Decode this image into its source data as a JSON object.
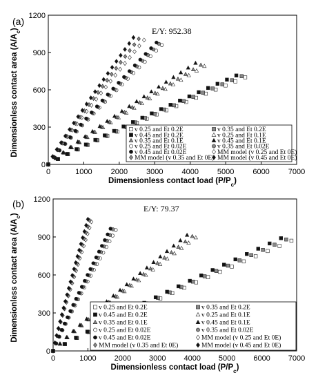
{
  "chart_data": [
    {
      "type": "scatter",
      "panel_label": "(a)",
      "annotation": "E/Y: 952.38",
      "xlabel": "Dimensionless contact load (P/P",
      "xlabel_sub": "c",
      "ylabel": "Dimensionless contact area (A/A",
      "ylabel_sub": "c",
      "xlim": [
        0,
        7000
      ],
      "ylim": [
        0,
        1200
      ],
      "xticks": [
        "0",
        "1000",
        "2000",
        "3000",
        "4000",
        "5000",
        "6000",
        "7000"
      ],
      "yticks": [
        "0",
        "300",
        "600",
        "900",
        "1200"
      ],
      "grid": false,
      "legend_position": "bottom-right",
      "series": [
        {
          "name": "v 0.25 and Et 0.2E",
          "marker": "square",
          "fill": "#ffffff",
          "end": [
            5550,
            700
          ]
        },
        {
          "name": "v 0.35 and Et 0.2E",
          "marker": "square",
          "fill": "#888888",
          "end": [
            5450,
            710
          ]
        },
        {
          "name": "v 0.45 and Et 0.2E",
          "marker": "square",
          "fill": "#111111",
          "end": [
            5300,
            715
          ]
        },
        {
          "name": "v 0.25 and Et 0.1E",
          "marker": "triangle",
          "fill": "#ffffff",
          "end": [
            4400,
            790
          ]
        },
        {
          "name": "v 0.35 and Et 0.1E",
          "marker": "triangle",
          "fill": "#888888",
          "end": [
            4300,
            800
          ]
        },
        {
          "name": "v 0.45 and Et 0.1E",
          "marker": "triangle",
          "fill": "#111111",
          "end": [
            4150,
            815
          ]
        },
        {
          "name": "v 0.25 and Et 0.02E",
          "marker": "circle",
          "fill": "#ffffff",
          "end": [
            3200,
            960
          ]
        },
        {
          "name": "v 0.35 and Et 0.02E",
          "marker": "circle",
          "fill": "#888888",
          "end": [
            3120,
            970
          ]
        },
        {
          "name": "v 0.45 and Et 0.02E",
          "marker": "circle",
          "fill": "#111111",
          "end": [
            3050,
            980
          ]
        },
        {
          "name": "MM model (v 0.25 and Et 0E)",
          "marker": "diamond",
          "fill": "#ffffff",
          "end": [
            2700,
            1000
          ]
        },
        {
          "name": "MM model (v 0.35 and Et 0E)",
          "marker": "diamond",
          "fill": "#888888",
          "end": [
            2550,
            1010
          ]
        },
        {
          "name": "MM model (v 0.45 and Et 0E)",
          "marker": "diamond",
          "fill": "#111111",
          "end": [
            2400,
            1020
          ]
        }
      ]
    },
    {
      "type": "scatter",
      "panel_label": "(b)",
      "annotation": "E/Y: 79.37",
      "xlabel": "Dimensionless contact load (P/P",
      "xlabel_sub": "c",
      "ylabel": "Dimensionless contact area (A/A",
      "ylabel_sub": "c",
      "xlim": [
        0,
        7000
      ],
      "ylim": [
        0,
        1200
      ],
      "xticks": [
        "0",
        "1000",
        "2000",
        "3000",
        "4000",
        "5000",
        "6000",
        "7000"
      ],
      "yticks": [
        "0",
        "300",
        "600",
        "900",
        "1200"
      ],
      "grid": false,
      "legend_position": "bottom-right",
      "series": [
        {
          "name": "v 0.25 and Et 0.2E",
          "marker": "square",
          "fill": "#ffffff",
          "end": [
            6850,
            870
          ]
        },
        {
          "name": "v 0.35 and Et 0.2E",
          "marker": "square",
          "fill": "#888888",
          "end": [
            6700,
            880
          ]
        },
        {
          "name": "v 0.45 and Et 0.2E",
          "marker": "square",
          "fill": "#111111",
          "end": [
            6550,
            890
          ]
        },
        {
          "name": "v 0.25 and Et 0.1E",
          "marker": "triangle",
          "fill": "#ffffff",
          "end": [
            4100,
            895
          ]
        },
        {
          "name": "v 0.35 and Et 0.1E",
          "marker": "triangle",
          "fill": "#888888",
          "end": [
            4000,
            905
          ]
        },
        {
          "name": "v 0.45 and Et 0.1E",
          "marker": "triangle",
          "fill": "#111111",
          "end": [
            3850,
            915
          ]
        },
        {
          "name": "v 0.25 and Et 0.02E",
          "marker": "circle",
          "fill": "#ffffff",
          "end": [
            1800,
            955
          ]
        },
        {
          "name": "v 0.35 and Et 0.02E",
          "marker": "circle",
          "fill": "#888888",
          "end": [
            1720,
            960
          ]
        },
        {
          "name": "v 0.45 and Et 0.02E",
          "marker": "circle",
          "fill": "#111111",
          "end": [
            1650,
            965
          ]
        },
        {
          "name": "MM model (v 0.25 and Et 0E)",
          "marker": "diamond",
          "fill": "#ffffff",
          "end": [
            1100,
            1020
          ]
        },
        {
          "name": "MM model (v 0.35 and Et 0E)",
          "marker": "diamond",
          "fill": "#888888",
          "end": [
            1050,
            1030
          ]
        },
        {
          "name": "MM model (v 0.45 and Et 0E)",
          "marker": "diamond",
          "fill": "#111111",
          "end": [
            1000,
            1040
          ]
        }
      ]
    }
  ]
}
